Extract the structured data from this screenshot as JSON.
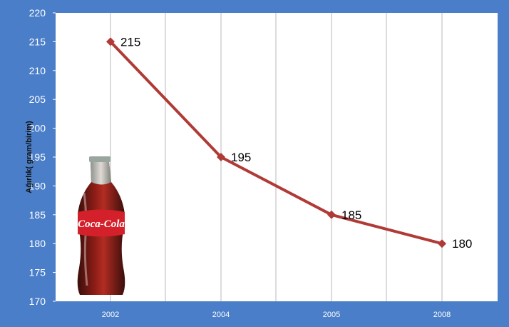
{
  "chart_data": {
    "type": "line",
    "categories": [
      "2002",
      "2004",
      "2005",
      "2008"
    ],
    "values": [
      215,
      195,
      185,
      180
    ],
    "data_labels": [
      "215",
      "195",
      "185",
      "180"
    ],
    "ylabel": "Ağırlık( gram/birim)",
    "xlabel": "",
    "ylim": [
      170,
      220
    ],
    "yticks": [
      "170",
      "175",
      "180",
      "185",
      "190",
      "195",
      "200",
      "205",
      "210",
      "215",
      "220"
    ],
    "grid": "vertical",
    "legend": "none",
    "colors": {
      "frame": "#4a7ec8",
      "plot_area": "#ffffff",
      "series": "#b03a36",
      "gridline": "#b9b9b9"
    }
  },
  "decoration": {
    "image": "coca-cola-bottle",
    "brand_text": "Coca-Cola"
  }
}
